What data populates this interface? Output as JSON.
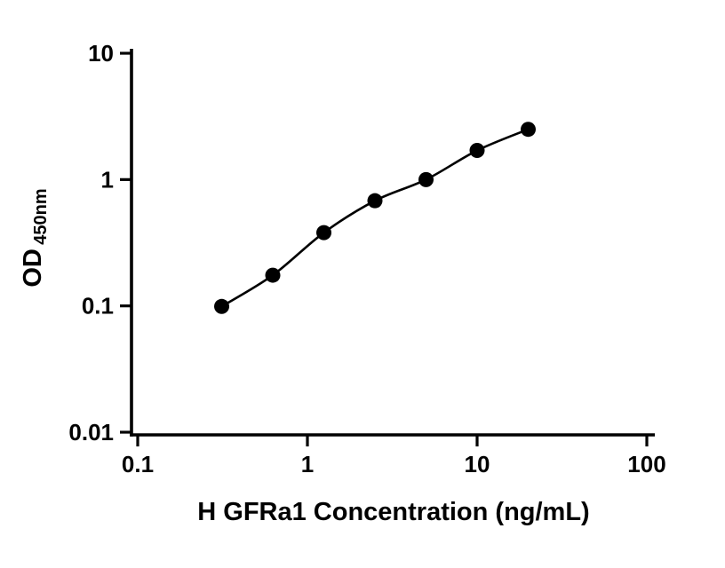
{
  "chart_data": {
    "type": "scatter",
    "title": "",
    "xlabel": "H GFRa1 Concentration (ng/mL)",
    "ylabel_main": "OD",
    "ylabel_sub": "450nm",
    "x": [
      0.3125,
      0.625,
      1.25,
      2.5,
      5,
      10,
      20
    ],
    "y": [
      0.099,
      0.175,
      0.38,
      0.68,
      1.0,
      1.7,
      2.5
    ],
    "xscale": "log",
    "yscale": "log",
    "xlim": [
      0.1,
      100
    ],
    "ylim": [
      0.01,
      10
    ],
    "x_tick_labels": [
      "0.1",
      "1",
      "10",
      "100"
    ],
    "y_tick_labels": [
      "0.01",
      "0.1",
      "1",
      "10"
    ],
    "grid": "off",
    "legend": "none",
    "marker_color": "#000000",
    "line_color": "#000000",
    "axis_color": "#000000"
  }
}
